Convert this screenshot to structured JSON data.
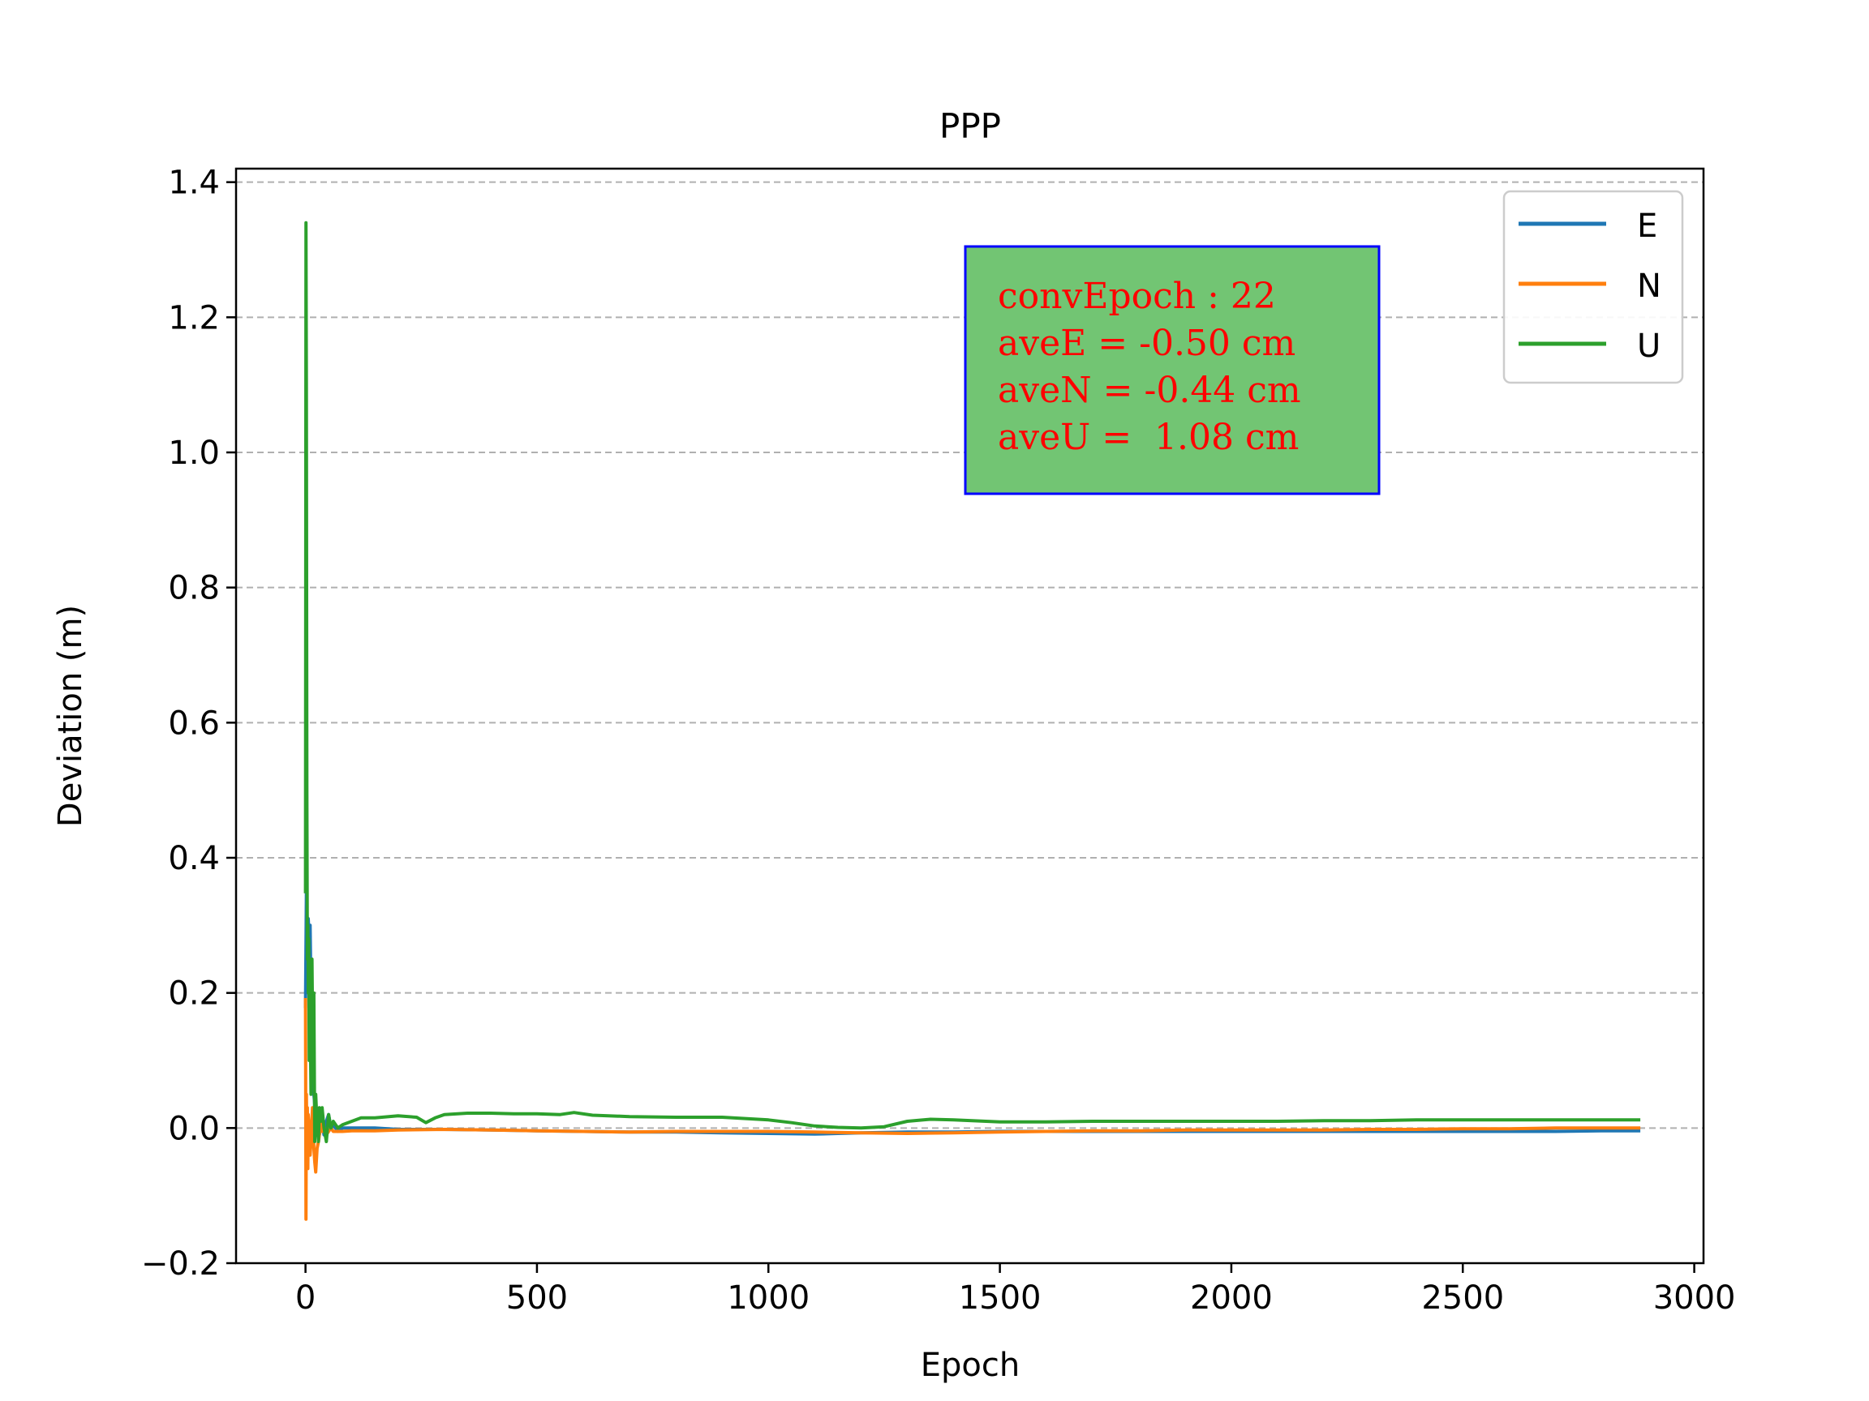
{
  "chart_data": {
    "type": "line",
    "title": "PPP",
    "xlabel": "Epoch",
    "ylabel": "Deviation (m)",
    "xlim": [
      -150,
      3020
    ],
    "ylim": [
      -0.2,
      1.42
    ],
    "xticks": [
      0,
      500,
      1000,
      1500,
      2000,
      2500,
      3000
    ],
    "xtick_labels": [
      "0",
      "500",
      "1000",
      "1500",
      "2000",
      "2500",
      "3000"
    ],
    "yticks": [
      -0.2,
      0.0,
      0.2,
      0.4,
      0.6,
      0.8,
      1.0,
      1.2,
      1.4
    ],
    "ytick_labels": [
      "−0.2",
      "0.0",
      "0.2",
      "0.4",
      "0.6",
      "0.8",
      "1.0",
      "1.2",
      "1.4"
    ],
    "grid": "horizontal dashed",
    "legend_position": "top-right",
    "series": [
      {
        "name": "E",
        "color": "#1f77b4",
        "x": [
          0,
          2,
          4,
          6,
          8,
          10,
          12,
          15,
          18,
          22,
          26,
          30,
          35,
          40,
          45,
          50,
          55,
          60,
          70,
          80,
          100,
          150,
          200,
          300,
          400,
          500,
          600,
          700,
          800,
          900,
          1000,
          1100,
          1150,
          1200,
          1300,
          1400,
          1500,
          1600,
          1700,
          1800,
          1900,
          2000,
          2100,
          2200,
          2300,
          2400,
          2500,
          2600,
          2700,
          2800,
          2880
        ],
        "values": [
          0.18,
          0.35,
          0.3,
          0.31,
          0.28,
          0.3,
          0.2,
          0.1,
          0.05,
          0.02,
          0.0,
          -0.01,
          0.01,
          -0.01,
          0.01,
          0.02,
          0.0,
          0.005,
          -0.005,
          0.0,
          0.0,
          0.0,
          -0.002,
          -0.002,
          -0.003,
          -0.004,
          -0.005,
          -0.006,
          -0.006,
          -0.007,
          -0.008,
          -0.009,
          -0.008,
          -0.007,
          -0.006,
          -0.006,
          -0.005,
          -0.005,
          -0.005,
          -0.005,
          -0.005,
          -0.005,
          -0.005,
          -0.005,
          -0.005,
          -0.005,
          -0.005,
          -0.005,
          -0.005,
          -0.004,
          -0.004
        ]
      },
      {
        "name": "N",
        "color": "#ff7f0e",
        "x": [
          0,
          1,
          2,
          3,
          4,
          5,
          6,
          8,
          10,
          12,
          15,
          18,
          20,
          22,
          25,
          28,
          30,
          33,
          36,
          40,
          45,
          50,
          55,
          60,
          70,
          80,
          100,
          150,
          200,
          300,
          400,
          500,
          600,
          700,
          800,
          900,
          1000,
          1100,
          1200,
          1300,
          1400,
          1500,
          1600,
          1700,
          1800,
          1900,
          2000,
          2100,
          2200,
          2300,
          2400,
          2500,
          2600,
          2700,
          2800,
          2880
        ],
        "values": [
          0.19,
          -0.135,
          0.05,
          -0.02,
          0.03,
          -0.06,
          0.02,
          0.0,
          -0.04,
          -0.02,
          0.03,
          -0.03,
          -0.05,
          -0.065,
          -0.03,
          -0.02,
          -0.01,
          0.01,
          -0.005,
          0.0,
          -0.01,
          -0.005,
          0.0,
          -0.005,
          -0.005,
          -0.005,
          -0.004,
          -0.004,
          -0.003,
          -0.002,
          -0.003,
          -0.004,
          -0.005,
          -0.006,
          -0.005,
          -0.005,
          -0.005,
          -0.006,
          -0.007,
          -0.008,
          -0.007,
          -0.006,
          -0.005,
          -0.004,
          -0.004,
          -0.003,
          -0.003,
          -0.003,
          -0.003,
          -0.002,
          -0.002,
          -0.001,
          -0.001,
          0.0,
          0.0,
          0.0
        ]
      },
      {
        "name": "U",
        "color": "#2ca02c",
        "x": [
          0,
          1,
          2,
          3,
          4,
          5,
          6,
          7,
          8,
          10,
          12,
          14,
          16,
          18,
          20,
          22,
          24,
          26,
          28,
          30,
          33,
          36,
          40,
          45,
          50,
          55,
          60,
          70,
          80,
          100,
          120,
          150,
          200,
          240,
          260,
          280,
          300,
          350,
          400,
          450,
          500,
          550,
          580,
          620,
          700,
          800,
          900,
          1000,
          1050,
          1100,
          1150,
          1200,
          1250,
          1300,
          1350,
          1400,
          1500,
          1600,
          1700,
          1800,
          1900,
          2000,
          2100,
          2200,
          2300,
          2400,
          2500,
          2600,
          2700,
          2800,
          2880
        ],
        "values": [
          0.35,
          1.34,
          1.1,
          0.5,
          0.25,
          0.3,
          0.2,
          0.28,
          0.1,
          0.18,
          0.05,
          0.25,
          0.1,
          0.2,
          -0.02,
          0.05,
          0.02,
          0.0,
          -0.02,
          0.03,
          0.01,
          0.03,
          0.0,
          -0.02,
          0.02,
          0.0,
          0.01,
          0.0,
          0.005,
          0.01,
          0.015,
          0.015,
          0.018,
          0.016,
          0.008,
          0.015,
          0.02,
          0.022,
          0.022,
          0.021,
          0.021,
          0.02,
          0.023,
          0.019,
          0.017,
          0.016,
          0.016,
          0.012,
          0.008,
          0.003,
          0.001,
          0.0,
          0.002,
          0.01,
          0.013,
          0.012,
          0.009,
          0.009,
          0.01,
          0.01,
          0.01,
          0.01,
          0.01,
          0.011,
          0.011,
          0.012,
          0.012,
          0.012,
          0.012,
          0.012,
          0.012
        ]
      }
    ],
    "annotation": {
      "lines": [
        "convEpoch : 22",
        "aveE = -0.50 cm",
        "aveN = -0.44 cm",
        "aveU =  1.08 cm"
      ],
      "text_color": "#ff0000",
      "box_fill": "#72c573",
      "box_edge": "#0000ff"
    }
  }
}
